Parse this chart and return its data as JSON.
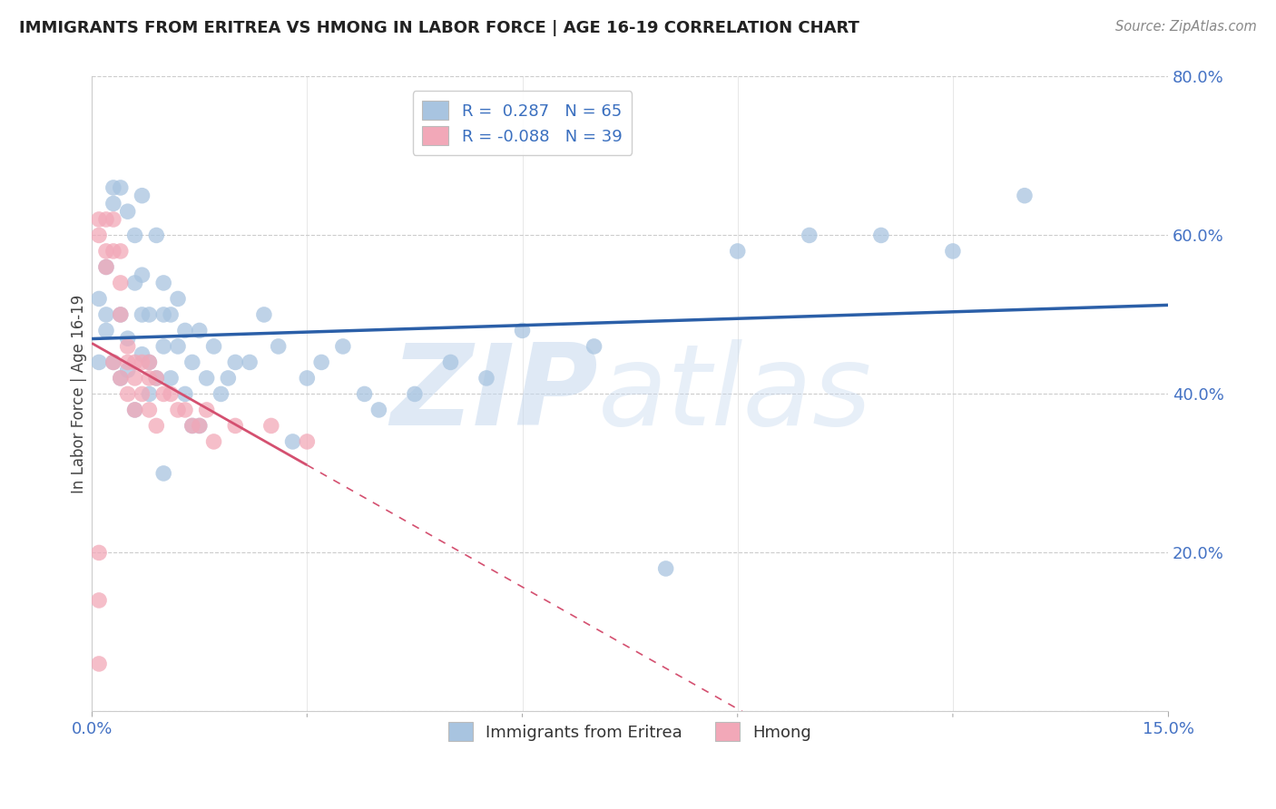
{
  "title": "IMMIGRANTS FROM ERITREA VS HMONG IN LABOR FORCE | AGE 16-19 CORRELATION CHART",
  "source": "Source: ZipAtlas.com",
  "ylabel": "In Labor Force | Age 16-19",
  "xmin": 0.0,
  "xmax": 0.15,
  "ymin": 0.0,
  "ymax": 0.8,
  "y_ticks": [
    0.0,
    0.2,
    0.4,
    0.6,
    0.8
  ],
  "y_tick_labels": [
    "",
    "20.0%",
    "40.0%",
    "60.0%",
    "80.0%"
  ],
  "legend_entries_r": [
    "R =  0.287",
    "R = -0.088"
  ],
  "legend_entries_n": [
    "N = 65",
    "N = 39"
  ],
  "legend_bottom": [
    "Immigrants from Eritrea",
    "Hmong"
  ],
  "eritrea_color": "#a8c4e0",
  "hmong_color": "#f2a8b8",
  "eritrea_line_color": "#2b5fa8",
  "hmong_line_color": "#d45070",
  "watermark_zip": "ZIP",
  "watermark_atlas": "atlas",
  "background_color": "#ffffff",
  "grid_color": "#cccccc",
  "title_color": "#222222",
  "tick_label_color": "#4472c4",
  "eritrea_x": [
    0.001,
    0.001,
    0.002,
    0.002,
    0.002,
    0.003,
    0.003,
    0.003,
    0.004,
    0.004,
    0.004,
    0.005,
    0.005,
    0.005,
    0.006,
    0.006,
    0.006,
    0.007,
    0.007,
    0.007,
    0.007,
    0.008,
    0.008,
    0.008,
    0.009,
    0.009,
    0.01,
    0.01,
    0.01,
    0.01,
    0.011,
    0.011,
    0.012,
    0.012,
    0.013,
    0.013,
    0.014,
    0.014,
    0.015,
    0.015,
    0.016,
    0.017,
    0.018,
    0.019,
    0.02,
    0.022,
    0.024,
    0.026,
    0.028,
    0.03,
    0.032,
    0.035,
    0.038,
    0.04,
    0.045,
    0.05,
    0.055,
    0.06,
    0.07,
    0.08,
    0.09,
    0.1,
    0.11,
    0.12,
    0.13
  ],
  "eritrea_y": [
    0.44,
    0.52,
    0.48,
    0.56,
    0.5,
    0.44,
    0.64,
    0.66,
    0.42,
    0.5,
    0.66,
    0.43,
    0.47,
    0.63,
    0.38,
    0.54,
    0.6,
    0.45,
    0.5,
    0.55,
    0.65,
    0.4,
    0.44,
    0.5,
    0.42,
    0.6,
    0.3,
    0.46,
    0.5,
    0.54,
    0.42,
    0.5,
    0.46,
    0.52,
    0.4,
    0.48,
    0.36,
    0.44,
    0.36,
    0.48,
    0.42,
    0.46,
    0.4,
    0.42,
    0.44,
    0.44,
    0.5,
    0.46,
    0.34,
    0.42,
    0.44,
    0.46,
    0.4,
    0.38,
    0.4,
    0.44,
    0.42,
    0.48,
    0.46,
    0.18,
    0.58,
    0.6,
    0.6,
    0.58,
    0.65
  ],
  "hmong_x": [
    0.001,
    0.001,
    0.001,
    0.001,
    0.001,
    0.002,
    0.002,
    0.002,
    0.003,
    0.003,
    0.003,
    0.004,
    0.004,
    0.004,
    0.004,
    0.005,
    0.005,
    0.005,
    0.006,
    0.006,
    0.006,
    0.007,
    0.007,
    0.008,
    0.008,
    0.008,
    0.009,
    0.009,
    0.01,
    0.011,
    0.012,
    0.013,
    0.014,
    0.015,
    0.016,
    0.017,
    0.02,
    0.025,
    0.03
  ],
  "hmong_y": [
    0.62,
    0.6,
    0.2,
    0.14,
    0.06,
    0.62,
    0.58,
    0.56,
    0.62,
    0.58,
    0.44,
    0.58,
    0.54,
    0.5,
    0.42,
    0.46,
    0.44,
    0.4,
    0.44,
    0.42,
    0.38,
    0.44,
    0.4,
    0.44,
    0.42,
    0.38,
    0.42,
    0.36,
    0.4,
    0.4,
    0.38,
    0.38,
    0.36,
    0.36,
    0.38,
    0.34,
    0.36,
    0.36,
    0.34
  ]
}
